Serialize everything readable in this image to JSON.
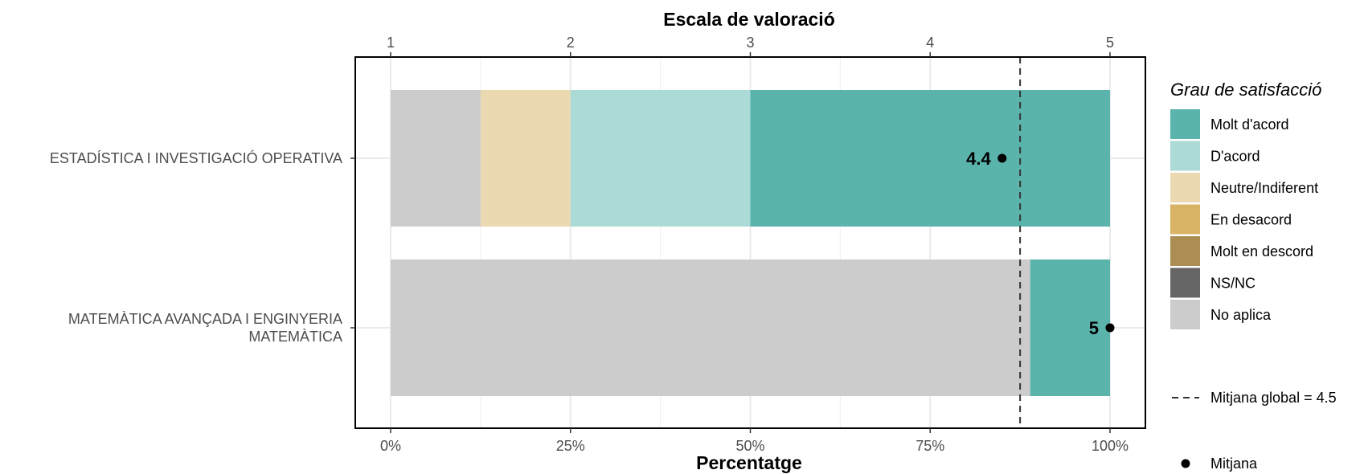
{
  "chart_data": {
    "type": "bar",
    "orientation": "horizontal",
    "stacked": true,
    "xlabel": "Percentatge",
    "x2label": "Escala de valoració",
    "xlim": [
      0,
      100
    ],
    "x_ticks": [
      "0%",
      "25%",
      "50%",
      "75%",
      "100%"
    ],
    "x2_ticks": [
      "1",
      "2",
      "3",
      "4",
      "5"
    ],
    "x2lim": [
      1,
      5
    ],
    "grid": true,
    "legend_position": "right",
    "categories": [
      [
        "ESTADÍSTICA I INVESTIGACIÓ OPERATIVA"
      ],
      [
        "MATEMÀTICA AVANÇADA I ENGINYERIA",
        "MATEMÀTICA"
      ]
    ],
    "series": [
      {
        "name": "Molt d'acord",
        "color": "#5ab4ac",
        "values": [
          50,
          11.1
        ]
      },
      {
        "name": "D'acord",
        "color": "#acdad6",
        "values": [
          25,
          0
        ]
      },
      {
        "name": "Neutre/Indiferent",
        "color": "#ebd9b2",
        "values": [
          12.5,
          0
        ]
      },
      {
        "name": "En desacord",
        "color": "#d8b365",
        "values": [
          0,
          0
        ]
      },
      {
        "name": "Molt en descord",
        "color": "#ad8e52",
        "values": [
          0,
          0
        ]
      },
      {
        "name": "NS/NC",
        "color": "#666666",
        "values": [
          0,
          0
        ]
      },
      {
        "name": "No aplica",
        "color": "#cccccc",
        "values": [
          12.5,
          88.9
        ]
      }
    ],
    "means": [
      {
        "value": 4.4,
        "label": "4.4"
      },
      {
        "value": 5,
        "label": "5"
      }
    ],
    "global_mean": {
      "value": 4.5,
      "label": "Mitjana global =  4.5"
    },
    "legend_title": "Grau de satisfacció",
    "mean_legend_label": "Mitjana"
  }
}
